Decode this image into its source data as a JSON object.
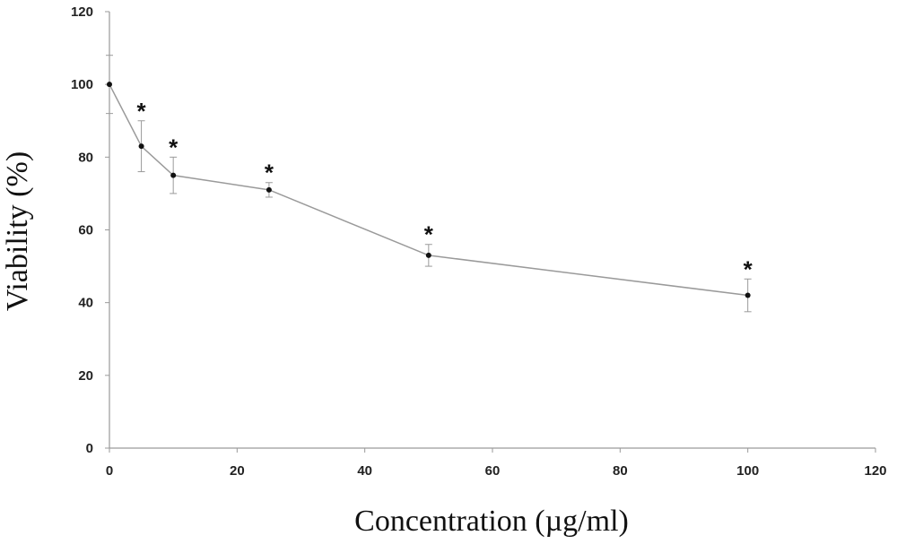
{
  "chart_data": {
    "type": "line",
    "title": "",
    "xlabel": "Concentration (µg/ml)",
    "ylabel": "Viability (%)",
    "xlim": [
      0,
      120
    ],
    "ylim": [
      0,
      120
    ],
    "xticks": [
      0,
      20,
      40,
      60,
      80,
      100,
      120
    ],
    "yticks": [
      0,
      20,
      40,
      60,
      80,
      100,
      120
    ],
    "grid": false,
    "series": [
      {
        "x": [
          0,
          5,
          10,
          25,
          50,
          100
        ],
        "y": [
          100,
          83,
          75,
          71,
          53,
          42
        ],
        "error": [
          8,
          7,
          5,
          2,
          3,
          4.5
        ],
        "annotations": [
          "",
          "*",
          "*",
          "*",
          "*",
          "*"
        ]
      }
    ],
    "colors": {
      "line": "#9a9a9a",
      "marker": "#111111",
      "axis": "#9a9a9a",
      "error_bar": "#9a9a9a"
    }
  }
}
